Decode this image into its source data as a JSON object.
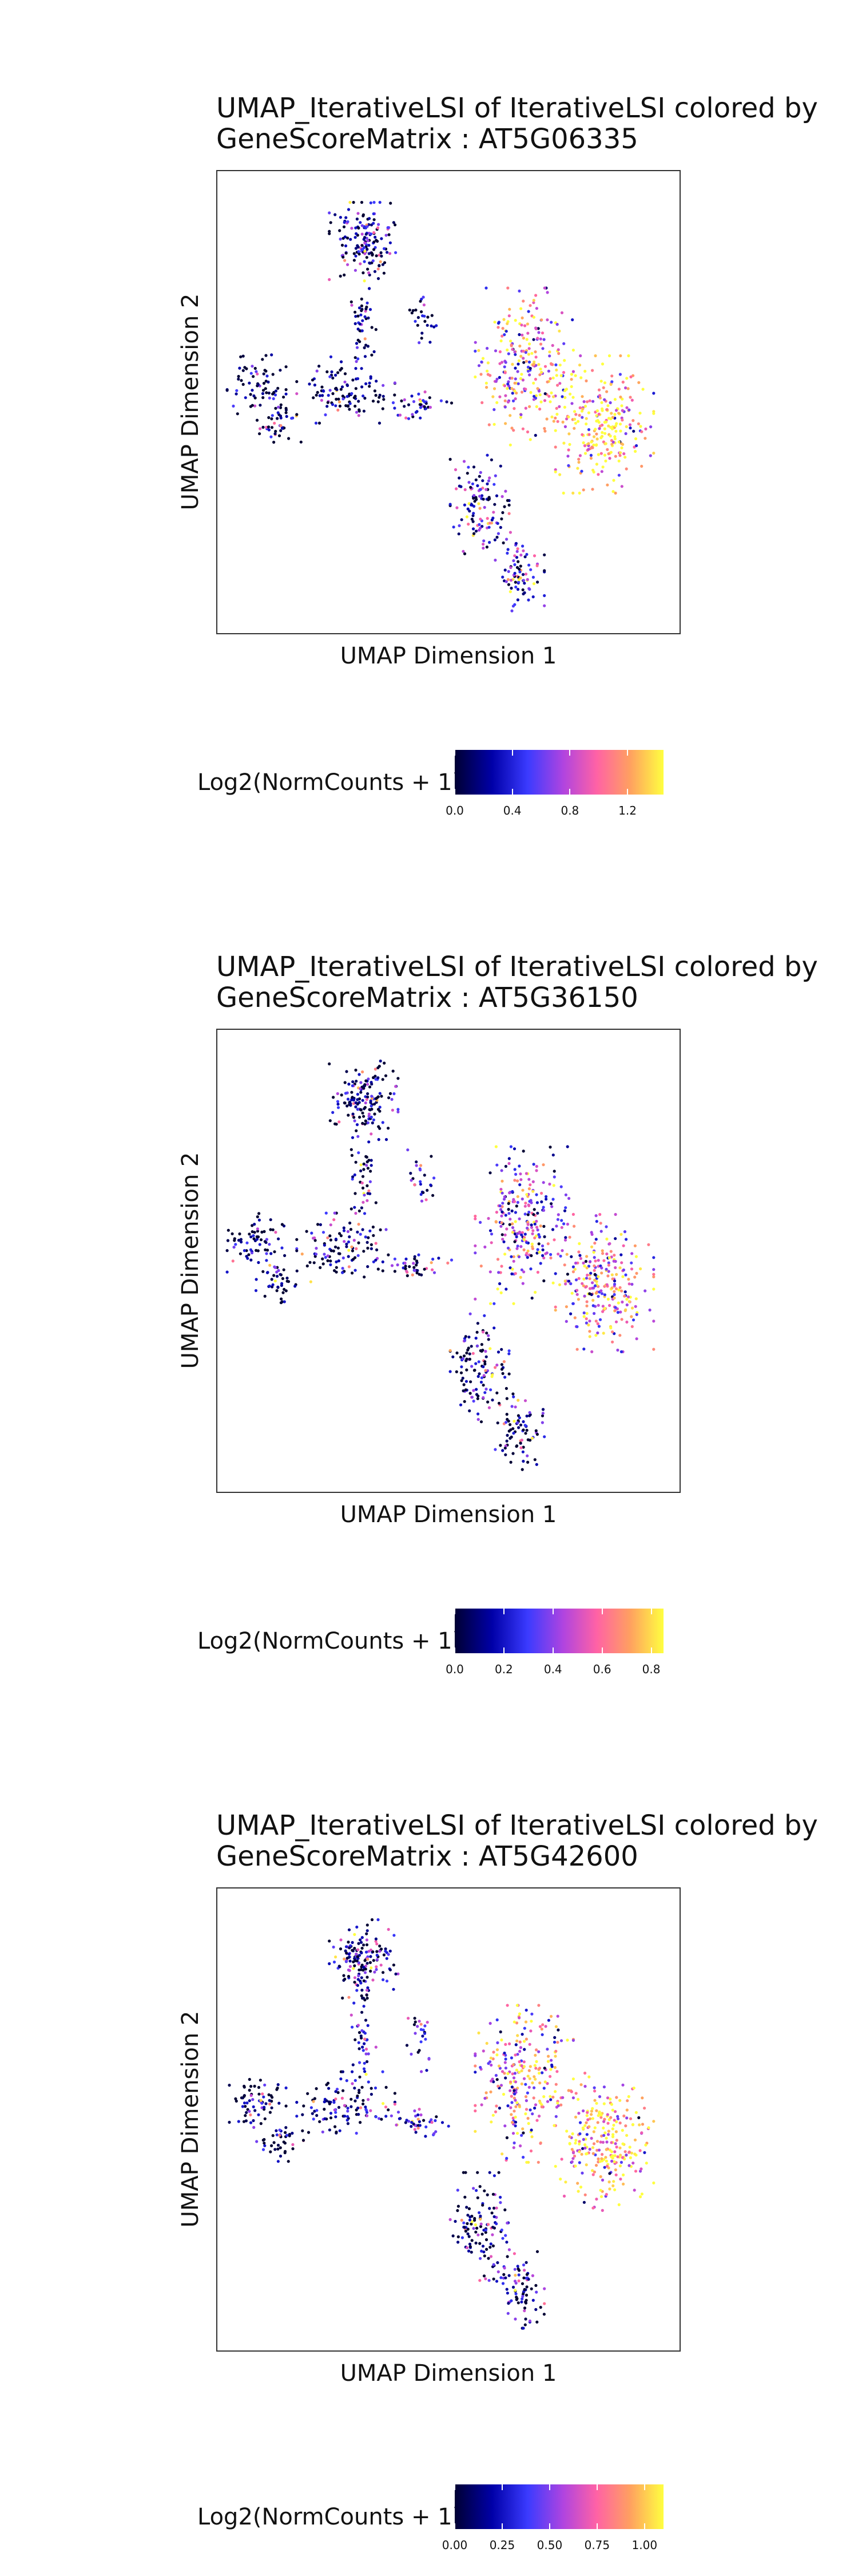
{
  "panels": [
    {
      "title_line1": "UMAP_IterativeLSI of IterativeLSI colored by",
      "title_line2": "GeneScoreMatrix : AT5G06335",
      "xlabel": "UMAP Dimension 1",
      "ylabel": "UMAP Dimension 2",
      "legend_title": "Log2(NormCounts + 1)",
      "colorbar_ticks": [
        "0.0",
        "0.4",
        "0.8",
        "1.2"
      ],
      "colorbar_tick_values": [
        0.0,
        0.4,
        0.8,
        1.2
      ],
      "colorbar_max": 1.45
    },
    {
      "title_line1": "UMAP_IterativeLSI of IterativeLSI colored by",
      "title_line2": "GeneScoreMatrix : AT5G36150",
      "xlabel": "UMAP Dimension 1",
      "ylabel": "UMAP Dimension 2",
      "legend_title": "Log2(NormCounts + 1)",
      "colorbar_ticks": [
        "0.0",
        "0.2",
        "0.4",
        "0.6",
        "0.8"
      ],
      "colorbar_tick_values": [
        0.0,
        0.2,
        0.4,
        0.6,
        0.8
      ],
      "colorbar_max": 0.85
    },
    {
      "title_line1": "UMAP_IterativeLSI of IterativeLSI colored by",
      "title_line2": "GeneScoreMatrix : AT5G42600",
      "xlabel": "UMAP Dimension 1",
      "ylabel": "UMAP Dimension 2",
      "legend_title": "Log2(NormCounts + 1)",
      "colorbar_ticks": [
        "0.00",
        "0.25",
        "0.50",
        "0.75",
        "1.00"
      ],
      "colorbar_tick_values": [
        0.0,
        0.25,
        0.5,
        0.75,
        1.0
      ],
      "colorbar_max": 1.1
    }
  ],
  "chart_data": [
    {
      "type": "scatter",
      "title": "UMAP_IterativeLSI of IterativeLSI colored by GeneScoreMatrix : AT5G06335",
      "xlabel": "UMAP Dimension 1",
      "ylabel": "UMAP Dimension 2",
      "color_scale": "Log2(NormCounts + 1)",
      "color_range": [
        0,
        1.45
      ],
      "grid": false,
      "clusters": [
        {
          "cx": 0.31,
          "cy": 0.86,
          "rx": 0.07,
          "ry": 0.08,
          "n": 160,
          "value": 0.2
        },
        {
          "cx": 0.07,
          "cy": 0.54,
          "rx": 0.06,
          "ry": 0.06,
          "n": 70,
          "value": 0.05
        },
        {
          "cx": 0.12,
          "cy": 0.45,
          "rx": 0.05,
          "ry": 0.04,
          "n": 40,
          "value": 0.05
        },
        {
          "cx": 0.27,
          "cy": 0.53,
          "rx": 0.1,
          "ry": 0.07,
          "n": 110,
          "value": 0.1
        },
        {
          "cx": 0.31,
          "cy": 0.68,
          "rx": 0.025,
          "ry": 0.1,
          "n": 45,
          "value": 0.1
        },
        {
          "cx": 0.44,
          "cy": 0.68,
          "rx": 0.03,
          "ry": 0.07,
          "n": 25,
          "value": 0.15
        },
        {
          "cx": 0.43,
          "cy": 0.49,
          "rx": 0.07,
          "ry": 0.03,
          "n": 40,
          "value": 0.3
        },
        {
          "cx": 0.67,
          "cy": 0.58,
          "rx": 0.1,
          "ry": 0.16,
          "n": 260,
          "value": 0.95
        },
        {
          "cx": 0.85,
          "cy": 0.45,
          "rx": 0.1,
          "ry": 0.14,
          "n": 260,
          "value": 1.25
        },
        {
          "cx": 0.57,
          "cy": 0.26,
          "rx": 0.06,
          "ry": 0.11,
          "n": 120,
          "value": 0.35
        },
        {
          "cx": 0.66,
          "cy": 0.12,
          "rx": 0.05,
          "ry": 0.08,
          "n": 80,
          "value": 0.45
        }
      ]
    },
    {
      "type": "scatter",
      "title": "UMAP_IterativeLSI of IterativeLSI colored by GeneScoreMatrix : AT5G36150",
      "xlabel": "UMAP Dimension 1",
      "ylabel": "UMAP Dimension 2",
      "color_scale": "Log2(NormCounts + 1)",
      "color_range": [
        0,
        0.85
      ],
      "grid": false,
      "clusters": [
        {
          "cx": 0.31,
          "cy": 0.86,
          "rx": 0.07,
          "ry": 0.08,
          "n": 160,
          "value": 0.08
        },
        {
          "cx": 0.07,
          "cy": 0.54,
          "rx": 0.06,
          "ry": 0.06,
          "n": 70,
          "value": 0.02
        },
        {
          "cx": 0.12,
          "cy": 0.45,
          "rx": 0.05,
          "ry": 0.04,
          "n": 40,
          "value": 0.02
        },
        {
          "cx": 0.27,
          "cy": 0.53,
          "rx": 0.1,
          "ry": 0.07,
          "n": 110,
          "value": 0.05
        },
        {
          "cx": 0.31,
          "cy": 0.68,
          "rx": 0.025,
          "ry": 0.1,
          "n": 45,
          "value": 0.08
        },
        {
          "cx": 0.44,
          "cy": 0.68,
          "rx": 0.03,
          "ry": 0.07,
          "n": 25,
          "value": 0.2
        },
        {
          "cx": 0.43,
          "cy": 0.49,
          "rx": 0.07,
          "ry": 0.03,
          "n": 40,
          "value": 0.1
        },
        {
          "cx": 0.67,
          "cy": 0.58,
          "rx": 0.1,
          "ry": 0.16,
          "n": 260,
          "value": 0.4
        },
        {
          "cx": 0.85,
          "cy": 0.45,
          "rx": 0.1,
          "ry": 0.14,
          "n": 260,
          "value": 0.55
        },
        {
          "cx": 0.57,
          "cy": 0.26,
          "rx": 0.06,
          "ry": 0.11,
          "n": 120,
          "value": 0.12
        },
        {
          "cx": 0.66,
          "cy": 0.12,
          "rx": 0.05,
          "ry": 0.08,
          "n": 80,
          "value": 0.1
        }
      ]
    },
    {
      "type": "scatter",
      "title": "UMAP_IterativeLSI of IterativeLSI colored by GeneScoreMatrix : AT5G42600",
      "xlabel": "UMAP Dimension 1",
      "ylabel": "UMAP Dimension 2",
      "color_scale": "Log2(NormCounts + 1)",
      "color_range": [
        0,
        1.1
      ],
      "grid": false,
      "clusters": [
        {
          "cx": 0.31,
          "cy": 0.86,
          "rx": 0.07,
          "ry": 0.08,
          "n": 160,
          "value": 0.15
        },
        {
          "cx": 0.07,
          "cy": 0.54,
          "rx": 0.06,
          "ry": 0.06,
          "n": 70,
          "value": 0.05
        },
        {
          "cx": 0.12,
          "cy": 0.45,
          "rx": 0.05,
          "ry": 0.04,
          "n": 40,
          "value": 0.05
        },
        {
          "cx": 0.27,
          "cy": 0.53,
          "rx": 0.1,
          "ry": 0.07,
          "n": 110,
          "value": 0.08
        },
        {
          "cx": 0.31,
          "cy": 0.68,
          "rx": 0.025,
          "ry": 0.1,
          "n": 45,
          "value": 0.15
        },
        {
          "cx": 0.44,
          "cy": 0.68,
          "rx": 0.03,
          "ry": 0.07,
          "n": 25,
          "value": 0.15
        },
        {
          "cx": 0.43,
          "cy": 0.49,
          "rx": 0.07,
          "ry": 0.03,
          "n": 40,
          "value": 0.25
        },
        {
          "cx": 0.67,
          "cy": 0.58,
          "rx": 0.1,
          "ry": 0.16,
          "n": 260,
          "value": 0.7
        },
        {
          "cx": 0.85,
          "cy": 0.45,
          "rx": 0.1,
          "ry": 0.14,
          "n": 260,
          "value": 0.85
        },
        {
          "cx": 0.57,
          "cy": 0.26,
          "rx": 0.06,
          "ry": 0.11,
          "n": 120,
          "value": 0.15
        },
        {
          "cx": 0.66,
          "cy": 0.12,
          "rx": 0.05,
          "ry": 0.08,
          "n": 80,
          "value": 0.15
        }
      ]
    }
  ]
}
